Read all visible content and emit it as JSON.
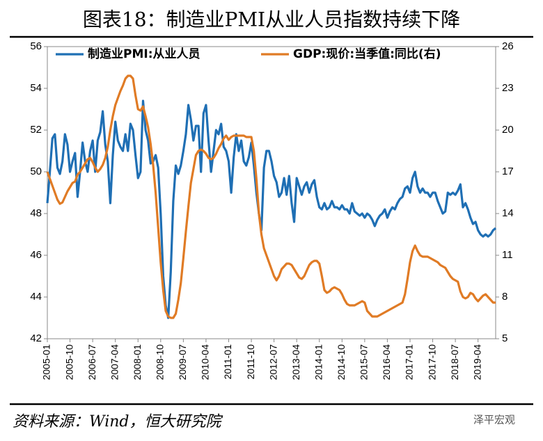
{
  "chart_data": {
    "type": "line",
    "title": "图表18：制造业PMI从业人员指数持续下降",
    "source": "资料来源：Wind，恒大研究院",
    "watermark": "泽平宏观",
    "categories": [
      "2005-01",
      null,
      null,
      null,
      null,
      null,
      null,
      null,
      null,
      "2005-10",
      null,
      null,
      null,
      null,
      null,
      null,
      null,
      null,
      "2006-07",
      null,
      null,
      null,
      null,
      null,
      null,
      null,
      null,
      "2007-04",
      null,
      null,
      null,
      null,
      null,
      null,
      null,
      null,
      "2008-01",
      null,
      null,
      null,
      null,
      null,
      null,
      null,
      null,
      "2008-10",
      null,
      null,
      null,
      null,
      null,
      null,
      null,
      null,
      "2009-07",
      null,
      null,
      null,
      null,
      null,
      null,
      null,
      null,
      "2010-04",
      null,
      null,
      null,
      null,
      null,
      null,
      null,
      null,
      "2011-01",
      null,
      null,
      null,
      null,
      null,
      null,
      null,
      null,
      "2011-10",
      null,
      null,
      null,
      null,
      null,
      null,
      null,
      null,
      "2012-07",
      null,
      null,
      null,
      null,
      null,
      null,
      null,
      null,
      "2013-04",
      null,
      null,
      null,
      null,
      null,
      null,
      null,
      null,
      "2014-01",
      null,
      null,
      null,
      null,
      null,
      null,
      null,
      null,
      "2014-10",
      null,
      null,
      null,
      null,
      null,
      null,
      null,
      null,
      "2015-07",
      null,
      null,
      null,
      null,
      null,
      null,
      null,
      null,
      "2016-04",
      null,
      null,
      null,
      null,
      null,
      null,
      null,
      null,
      "2017-01",
      null,
      null,
      null,
      null,
      null,
      null,
      null,
      null,
      "2017-10",
      null,
      null,
      null,
      null,
      null,
      null,
      null,
      null,
      "2018-07",
      null,
      null,
      null,
      null,
      null,
      null,
      null,
      null,
      "2019-04",
      null,
      null,
      null,
      null,
      null,
      null,
      null
    ],
    "series": [
      {
        "name": "制造业PMI:从业人员",
        "color": "#1f6fb4",
        "axis": "y",
        "values": [
          48.5,
          50.0,
          51.6,
          51.8,
          50.2,
          49.9,
          50.5,
          51.8,
          51.3,
          50.0,
          50.5,
          50.9,
          48.8,
          50.0,
          51.4,
          50.5,
          50.0,
          51.0,
          51.5,
          50.0,
          51.5,
          51.9,
          52.9,
          51.3,
          50.5,
          48.5,
          50.8,
          52.4,
          51.5,
          51.2,
          51.0,
          51.8,
          51.0,
          52.3,
          52.0,
          50.8,
          49.7,
          50.0,
          53.4,
          52.0,
          51.5,
          50.4,
          50.5,
          50.8,
          50.2,
          48.0,
          45.0,
          43.6,
          43.0,
          45.2,
          48.6,
          50.3,
          49.9,
          50.3,
          51.0,
          51.8,
          53.2,
          52.5,
          51.5,
          52.2,
          52.2,
          50.0,
          52.8,
          53.2,
          51.5,
          50.0,
          51.0,
          52.0,
          51.8,
          52.3,
          51.2,
          51.0,
          50.5,
          49.0,
          50.7,
          51.8,
          51.0,
          51.5,
          50.5,
          50.3,
          50.7,
          51.4,
          50.3,
          49.0,
          48.0,
          47.2,
          50.2,
          51.0,
          51.0,
          50.5,
          49.8,
          49.5,
          48.8,
          49.0,
          49.7,
          48.9,
          49.8,
          48.5,
          47.6,
          49.7,
          49.3,
          48.9,
          49.3,
          49.5,
          49.0,
          49.4,
          49.6,
          48.8,
          48.3,
          48.2,
          48.5,
          48.2,
          48.3,
          48.6,
          48.3,
          48.3,
          48.2,
          48.4,
          48.2,
          48.2,
          48.0,
          48.5,
          48.1,
          48.0,
          47.9,
          48.0,
          47.8,
          48.0,
          47.9,
          47.7,
          47.4,
          47.7,
          47.9,
          48.0,
          48.2,
          47.8,
          48.1,
          48.3,
          48.2,
          48.5,
          48.7,
          48.8,
          49.2,
          49.3,
          49.0,
          49.7,
          50.0,
          49.3,
          49.0,
          49.2,
          49.0,
          49.0,
          48.8,
          49.0,
          49.0,
          48.6,
          48.3,
          48.0,
          48.1,
          49.0,
          48.9,
          49.0,
          48.9,
          49.1,
          49.4,
          48.3,
          48.5,
          48.2,
          47.8,
          47.5,
          47.6,
          47.2,
          47.0,
          46.9,
          47.0,
          46.9,
          47.0,
          47.2,
          47.3
        ]
      },
      {
        "name": "GDP:现价:当季值:同比(右)",
        "color": "#e07b25",
        "axis": "y2",
        "values": [
          17.0,
          16.5,
          16.0,
          15.5,
          15.0,
          14.7,
          14.8,
          15.2,
          15.6,
          15.9,
          16.2,
          16.3,
          16.8,
          17.0,
          17.3,
          17.6,
          17.9,
          18.0,
          17.7,
          17.3,
          17.0,
          17.2,
          17.5,
          18.0,
          18.8,
          20.0,
          21.0,
          21.8,
          22.3,
          22.8,
          23.2,
          23.7,
          23.9,
          23.9,
          23.7,
          22.5,
          21.5,
          21.4,
          21.7,
          21.0,
          20.2,
          19.0,
          17.5,
          15.5,
          13.0,
          10.5,
          8.5,
          7.0,
          6.6,
          6.5,
          6.5,
          6.8,
          7.8,
          9.0,
          10.8,
          12.7,
          14.5,
          16.2,
          17.2,
          18.2,
          18.5,
          18.6,
          18.5,
          18.3,
          18.0,
          17.9,
          18.0,
          18.3,
          18.7,
          19.0,
          19.4,
          19.6,
          19.3,
          19.5,
          19.6,
          19.6,
          19.6,
          19.6,
          19.6,
          19.5,
          19.5,
          19.5,
          18.5,
          16.5,
          14.0,
          12.5,
          11.5,
          11.0,
          10.5,
          10.0,
          9.5,
          9.2,
          9.5,
          10.0,
          10.2,
          10.4,
          10.4,
          10.3,
          10.0,
          9.7,
          9.4,
          9.3,
          9.5,
          9.9,
          10.3,
          10.5,
          10.6,
          10.6,
          10.4,
          9.5,
          8.5,
          8.3,
          8.4,
          8.6,
          8.7,
          8.6,
          8.5,
          8.2,
          7.8,
          7.5,
          7.4,
          7.4,
          7.4,
          7.5,
          7.6,
          7.7,
          7.6,
          7.0,
          6.8,
          6.6,
          6.6,
          6.6,
          6.7,
          6.8,
          6.9,
          7.0,
          7.1,
          7.2,
          7.3,
          7.4,
          7.5,
          7.6,
          8.2,
          9.3,
          10.5,
          11.3,
          11.7,
          11.3,
          11.0,
          10.9,
          10.9,
          10.9,
          10.8,
          10.7,
          10.6,
          10.5,
          10.3,
          10.2,
          10.1,
          9.8,
          9.5,
          9.3,
          9.2,
          9.1,
          8.4,
          8.0,
          7.9,
          8.0,
          8.3,
          8.2,
          7.9,
          7.7,
          7.9,
          8.1,
          8.2,
          8.0,
          7.8,
          7.6,
          7.6
        ]
      }
    ],
    "ylim": [
      42,
      56
    ],
    "yticks": [
      42,
      44,
      46,
      48,
      50,
      52,
      54,
      56
    ],
    "y2lim": [
      5,
      26
    ],
    "y2ticks": [
      5,
      8,
      11,
      14,
      17,
      20,
      23,
      26
    ],
    "legend": "top"
  }
}
